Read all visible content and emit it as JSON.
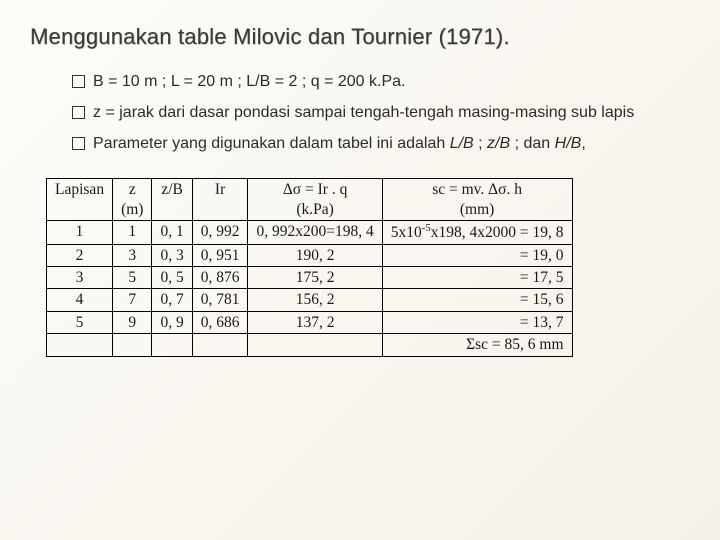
{
  "title": "Menggunakan table Milovic dan Tournier (1971).",
  "bullets": {
    "b1": "B = 10 m ; L = 20 m ; L/B = 2 ; q = 200 k.Pa.",
    "b2": "z = jarak dari dasar pondasi sampai tengah-tengah masing-masing sub lapis",
    "b3a": "Parameter yang digunakan dalam tabel ini adalah ",
    "b3_i1": "L/B",
    "b3b": " ; ",
    "b3_i2": "z/B",
    "b3c": " ; dan ",
    "b3_i3": "H/B",
    "b3d": ","
  },
  "headers": {
    "h1": "Lapisan",
    "h2a": "z",
    "h2b": "(m)",
    "h3": "z/B",
    "h4": "Ir",
    "h5a": "Δσ = Ir . q",
    "h5b": "(k.Pa)",
    "h6a": "sc = mv. Δσ. h",
    "h6b": "(mm)"
  },
  "rows": {
    "r1": {
      "c1": "1",
      "c2": "1",
      "c3": "0, 1",
      "c4": "0, 992",
      "c5": "0, 992x200=198, 4",
      "c6_a": "5x10",
      "c6_b": "x198, 4x2000 = 19, 8"
    },
    "r2": {
      "c1": "2",
      "c2": "3",
      "c3": "0, 3",
      "c4": "0, 951",
      "c5": "190, 2",
      "c6": "= 19, 0"
    },
    "r3": {
      "c1": "3",
      "c2": "5",
      "c3": "0, 5",
      "c4": "0, 876",
      "c5": "175, 2",
      "c6": "= 17, 5"
    },
    "r4": {
      "c1": "4",
      "c2": "7",
      "c3": "0, 7",
      "c4": "0, 781",
      "c5": "156, 2",
      "c6": "= 15, 6"
    },
    "r5": {
      "c1": "5",
      "c2": "9",
      "c3": "0, 9",
      "c4": "0, 686",
      "c5": "137, 2",
      "c6": "= 13, 7"
    }
  },
  "sum": "Σsc =  85, 6 mm"
}
